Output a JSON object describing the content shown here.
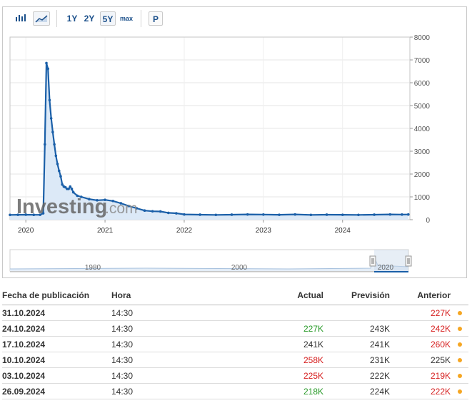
{
  "toolbar": {
    "ranges": [
      "1Y",
      "2Y",
      "5Y",
      "max"
    ],
    "active_range": "5Y",
    "p_button": "P",
    "icons": [
      "bar-chart-icon",
      "area-chart-icon"
    ]
  },
  "watermark": {
    "brand": "Investing",
    "suffix": ".com"
  },
  "chart_data": {
    "type": "area",
    "x_ticks": [
      "2020",
      "2021",
      "2022",
      "2023",
      "2024"
    ],
    "y_ticks": [
      0,
      1000,
      2000,
      3000,
      4000,
      5000,
      6000,
      7000,
      8000
    ],
    "ylim": [
      0,
      8000
    ],
    "xlim": [
      2019.8,
      2024.85
    ],
    "grid": true,
    "color": "#1a5fa8",
    "fill": "#dce9f7",
    "series": [
      {
        "x": [
          2019.8,
          2019.9,
          2020.0,
          2020.1,
          2020.18,
          2020.22,
          2020.24,
          2020.26,
          2020.28,
          2020.3,
          2020.32,
          2020.34,
          2020.36,
          2020.38,
          2020.4,
          2020.42,
          2020.44,
          2020.46,
          2020.48,
          2020.5,
          2020.52,
          2020.54,
          2020.56,
          2020.58,
          2020.6,
          2020.65,
          2020.7,
          2020.8,
          2020.9,
          2021.0,
          2021.1,
          2021.2,
          2021.3,
          2021.4,
          2021.5,
          2021.6,
          2021.7,
          2021.8,
          2021.9,
          2022.0,
          2022.2,
          2022.4,
          2022.6,
          2022.8,
          2023.0,
          2023.2,
          2023.4,
          2023.6,
          2023.8,
          2024.0,
          2024.2,
          2024.4,
          2024.6,
          2024.75,
          2024.83
        ],
        "values": [
          210,
          215,
          220,
          212,
          215,
          280,
          3300,
          6860,
          6610,
          5240,
          4440,
          3840,
          3300,
          2800,
          2440,
          2140,
          1900,
          1540,
          1450,
          1420,
          1350,
          1350,
          1450,
          1350,
          1200,
          1050,
          1000,
          900,
          850,
          870,
          820,
          720,
          600,
          500,
          400,
          370,
          360,
          300,
          280,
          230,
          220,
          210,
          220,
          230,
          225,
          215,
          230,
          210,
          220,
          215,
          210,
          220,
          230,
          225,
          227
        ]
      }
    ]
  },
  "navigator": {
    "labels": [
      "1980",
      "2000",
      "2020"
    ]
  },
  "table": {
    "headers": {
      "date": "Fecha de publicación",
      "time": "Hora",
      "actual": "Actual",
      "forecast": "Previsión",
      "previous": "Anterior"
    },
    "rows": [
      {
        "date": "31.10.2024",
        "time": "14:30",
        "actual": "",
        "actual_class": "neu",
        "forecast": "",
        "previous": "227K",
        "previous_class": "neg"
      },
      {
        "date": "24.10.2024",
        "time": "14:30",
        "actual": "227K",
        "actual_class": "pos",
        "forecast": "243K",
        "previous": "242K",
        "previous_class": "neg"
      },
      {
        "date": "17.10.2024",
        "time": "14:30",
        "actual": "241K",
        "actual_class": "neu",
        "forecast": "241K",
        "previous": "260K",
        "previous_class": "neg"
      },
      {
        "date": "10.10.2024",
        "time": "14:30",
        "actual": "258K",
        "actual_class": "neg",
        "forecast": "231K",
        "previous": "225K",
        "previous_class": "neu"
      },
      {
        "date": "03.10.2024",
        "time": "14:30",
        "actual": "225K",
        "actual_class": "neg",
        "forecast": "222K",
        "previous": "219K",
        "previous_class": "neg"
      },
      {
        "date": "26.09.2024",
        "time": "14:30",
        "actual": "218K",
        "actual_class": "pos",
        "forecast": "224K",
        "previous": "222K",
        "previous_class": "neg"
      }
    ]
  }
}
